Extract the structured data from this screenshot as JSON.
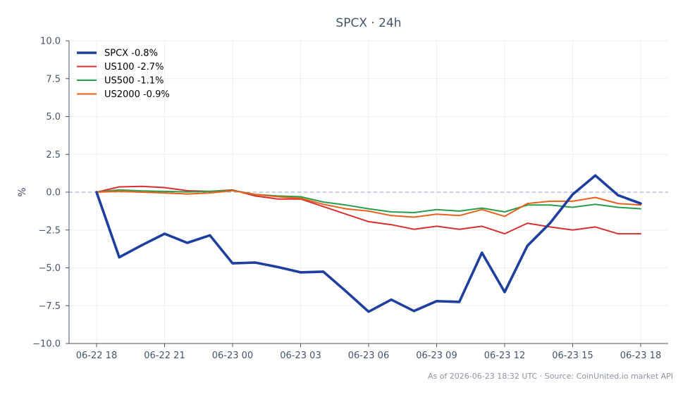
{
  "chart_data": {
    "type": "line",
    "title": "SPCX · 24h",
    "xlabel": "",
    "ylabel": "%",
    "ylim": [
      -10,
      10
    ],
    "yticks": [
      10.0,
      7.5,
      5.0,
      2.5,
      0.0,
      -2.5,
      -5.0,
      -7.5,
      -10.0
    ],
    "ytick_labels": [
      "10.0",
      "7.5",
      "5.0",
      "2.5",
      "0.0",
      "−2.5",
      "−5.0",
      "−7.5",
      "−10.0"
    ],
    "x": [
      "06-22 18",
      "06-22 19",
      "06-22 20",
      "06-22 21",
      "06-22 22",
      "06-22 23",
      "06-23 00",
      "06-23 01",
      "06-23 02",
      "06-23 03",
      "06-23 04",
      "06-23 05",
      "06-23 06",
      "06-23 07",
      "06-23 08",
      "06-23 09",
      "06-23 10",
      "06-23 11",
      "06-23 12",
      "06-23 13",
      "06-23 14",
      "06-23 15",
      "06-23 16",
      "06-23 17",
      "06-23 18"
    ],
    "xticks": [
      "06-22 18",
      "06-22 21",
      "06-23 00",
      "06-23 03",
      "06-23 06",
      "06-23 09",
      "06-23 12",
      "06-23 15",
      "06-23 18"
    ],
    "reference_line": 0,
    "grid": true,
    "legend_position": "top-left",
    "series": [
      {
        "name": "SPCX -0.8%",
        "color": "#1f3f9e",
        "emphasis": true,
        "values": [
          0.0,
          -4.3,
          -3.5,
          -2.75,
          -3.35,
          -2.85,
          -4.7,
          -4.65,
          -4.95,
          -5.3,
          -5.25,
          -6.55,
          -7.9,
          -7.1,
          -7.85,
          -7.2,
          -7.25,
          -4.0,
          -6.6,
          -3.55,
          -2.05,
          -0.15,
          1.1,
          -0.2,
          -0.75
        ]
      },
      {
        "name": "US100 -2.7%",
        "color": "#d62f2f",
        "values": [
          0.0,
          0.35,
          0.38,
          0.3,
          0.1,
          0.05,
          0.15,
          -0.25,
          -0.45,
          -0.45,
          -0.95,
          -1.45,
          -1.95,
          -2.15,
          -2.45,
          -2.25,
          -2.45,
          -2.25,
          -2.75,
          -2.05,
          -2.3,
          -2.5,
          -2.3,
          -2.75,
          -2.75
        ]
      },
      {
        "name": "US500 -1.1%",
        "color": "#2a9d4a",
        "values": [
          0.0,
          0.15,
          0.08,
          0.05,
          0.02,
          0.05,
          0.12,
          -0.15,
          -0.25,
          -0.3,
          -0.65,
          -0.85,
          -1.1,
          -1.3,
          -1.35,
          -1.15,
          -1.25,
          -1.05,
          -1.3,
          -0.85,
          -0.85,
          -1.0,
          -0.8,
          -1.0,
          -1.1
        ]
      },
      {
        "name": "US2000 -0.9%",
        "color": "#e8601c",
        "values": [
          0.0,
          0.05,
          0.0,
          -0.05,
          -0.12,
          -0.05,
          0.1,
          -0.15,
          -0.3,
          -0.4,
          -0.8,
          -1.1,
          -1.25,
          -1.55,
          -1.65,
          -1.45,
          -1.55,
          -1.15,
          -1.6,
          -0.75,
          -0.6,
          -0.6,
          -0.35,
          -0.75,
          -0.85
        ]
      }
    ],
    "footnote": "As of 2026-06-23 18:32 UTC · Source: CoinUnited.io market API"
  }
}
